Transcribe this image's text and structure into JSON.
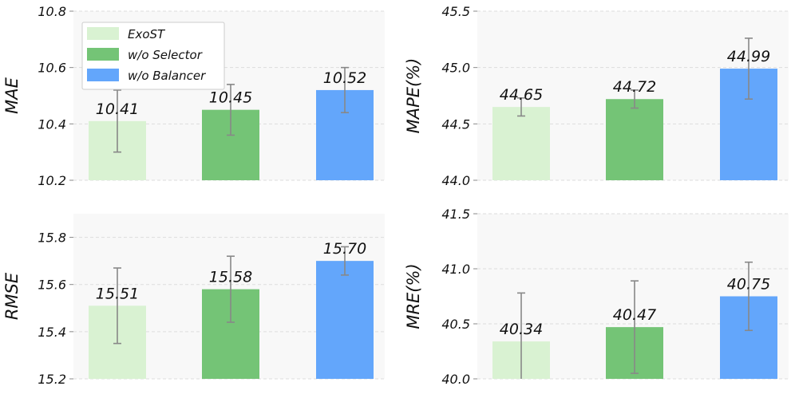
{
  "chart_data": [
    {
      "type": "bar",
      "categories": [
        "ExoST",
        "w/o Selector",
        "w/o Balancer"
      ],
      "values": [
        10.41,
        10.45,
        10.52
      ],
      "errors": [
        0.11,
        0.09,
        0.08
      ],
      "value_labels": [
        "10.41",
        "10.45",
        "10.52"
      ],
      "ylabel": "MAE",
      "ylim": [
        10.2,
        10.8
      ],
      "yticks": [
        10.2,
        10.4,
        10.6,
        10.8
      ],
      "ytick_labels": [
        "10.2",
        "10.4",
        "10.6",
        "10.8"
      ],
      "grid": true
    },
    {
      "type": "bar",
      "categories": [
        "ExoST",
        "w/o Selector",
        "w/o Balancer"
      ],
      "values": [
        44.65,
        44.72,
        44.99
      ],
      "errors": [
        0.08,
        0.08,
        0.27
      ],
      "value_labels": [
        "44.65",
        "44.72",
        "44.99"
      ],
      "ylabel": "MAPE(%)",
      "ylim": [
        44.0,
        45.5
      ],
      "yticks": [
        44.0,
        44.5,
        45.0,
        45.5
      ],
      "ytick_labels": [
        "44.0",
        "44.5",
        "45.0",
        "45.5"
      ],
      "grid": true
    },
    {
      "type": "bar",
      "categories": [
        "ExoST",
        "w/o Selector",
        "w/o Balancer"
      ],
      "values": [
        15.51,
        15.58,
        15.7
      ],
      "errors": [
        0.16,
        0.14,
        0.06
      ],
      "value_labels": [
        "15.51",
        "15.58",
        "15.70"
      ],
      "ylabel": "RMSE",
      "ylim": [
        15.2,
        15.9
      ],
      "yticks": [
        15.2,
        15.4,
        15.6,
        15.8
      ],
      "ytick_labels": [
        "15.2",
        "15.4",
        "15.6",
        "15.8"
      ],
      "grid": true
    },
    {
      "type": "bar",
      "categories": [
        "ExoST",
        "w/o Selector",
        "w/o Balancer"
      ],
      "values": [
        40.34,
        40.47,
        40.75
      ],
      "errors": [
        0.44,
        0.42,
        0.31
      ],
      "value_labels": [
        "40.34",
        "40.47",
        "40.75"
      ],
      "ylabel": "MRE(%)",
      "ylim": [
        40.0,
        41.5
      ],
      "yticks": [
        40.0,
        40.5,
        41.0,
        41.5
      ],
      "ytick_labels": [
        "40.0",
        "40.5",
        "41.0",
        "41.5"
      ],
      "grid": true
    }
  ],
  "legend": {
    "placement": "top-left",
    "entries": [
      "ExoST",
      "w/o Selector",
      "w/o Balancer"
    ]
  },
  "colors": {
    "bars": [
      "#d9f2d2",
      "#74c476",
      "#63a6fb"
    ],
    "panel_background": "#f8f8f8",
    "grid": "#dddddd",
    "error_bar": "#888888"
  }
}
